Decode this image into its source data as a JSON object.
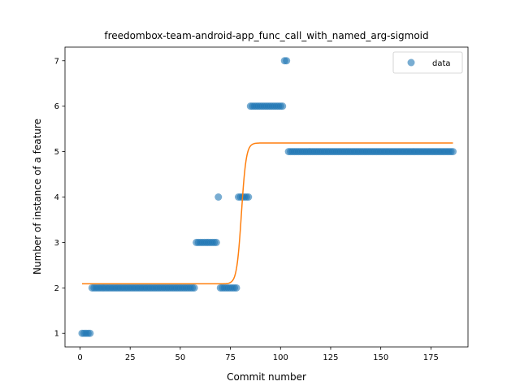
{
  "chart_data": {
    "type": "scatter",
    "title": "freedombox-team-android-app_func_call_with_named_arg-sigmoid",
    "xlabel": "Commit number",
    "ylabel": "Number of instance of a feature",
    "xlim": [
      -7.5,
      193.5
    ],
    "ylim": [
      0.7,
      7.3
    ],
    "xticks": [
      0,
      25,
      50,
      75,
      100,
      125,
      150,
      175
    ],
    "yticks": [
      1,
      2,
      3,
      4,
      5,
      6,
      7
    ],
    "grid": false,
    "legend_position": "top-right",
    "colors": {
      "data": "#1f77b4",
      "fit": "#ff7f0e"
    },
    "series": [
      {
        "name": "data",
        "kind": "points",
        "segments": [
          {
            "x_from": 1,
            "x_to": 5,
            "y": 1
          },
          {
            "x_from": 6,
            "x_to": 57,
            "y": 2
          },
          {
            "x_from": 58,
            "x_to": 68,
            "y": 3
          },
          {
            "x_from": 69,
            "x_to": 69,
            "y": 4
          },
          {
            "x_from": 70,
            "x_to": 78,
            "y": 2
          },
          {
            "x_from": 79,
            "x_to": 84,
            "y": 4
          },
          {
            "x_from": 85,
            "x_to": 101,
            "y": 6
          },
          {
            "x_from": 102,
            "x_to": 103,
            "y": 7
          },
          {
            "x_from": 104,
            "x_to": 186,
            "y": 5
          }
        ]
      },
      {
        "kind": "sigmoid-fit",
        "x_range": [
          1,
          186
        ],
        "low": 2.09,
        "high": 5.19,
        "midpoint": 80.5,
        "steepness": 0.85
      }
    ]
  }
}
